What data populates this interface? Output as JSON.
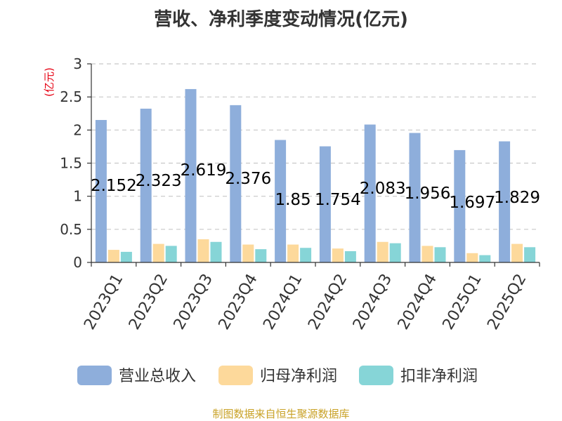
{
  "chart_data": {
    "type": "bar",
    "title": "营收、净利季度变动情况(亿元)",
    "unit_label": "(亿元)",
    "categories": [
      "2023Q1",
      "2023Q2",
      "2023Q3",
      "2023Q4",
      "2024Q1",
      "2024Q2",
      "2024Q3",
      "2024Q4",
      "2025Q1",
      "2025Q2"
    ],
    "series": [
      {
        "name": "营业总收入",
        "color": "#8eaedb",
        "values": [
          2.152,
          2.323,
          2.619,
          2.376,
          1.85,
          1.754,
          2.083,
          1.956,
          1.697,
          1.829
        ]
      },
      {
        "name": "归母净利润",
        "color": "#fdd99b",
        "values": [
          0.19,
          0.28,
          0.35,
          0.27,
          0.27,
          0.21,
          0.31,
          0.25,
          0.14,
          0.28
        ]
      },
      {
        "name": "扣非净利润",
        "color": "#86d5d7",
        "values": [
          0.16,
          0.25,
          0.31,
          0.2,
          0.22,
          0.17,
          0.29,
          0.23,
          0.11,
          0.23
        ]
      }
    ],
    "data_labels": [
      "2.152",
      "2.323",
      "2.619",
      "2.376",
      "1.85",
      "1.754",
      "2.083",
      "1.956",
      "1.697",
      "1.829"
    ],
    "yticks": [
      "0",
      "0.5",
      "1",
      "1.5",
      "2",
      "2.5",
      "3"
    ],
    "ylim": [
      0,
      3
    ],
    "grid": "horizontal dashed",
    "legend_position": "bottom"
  },
  "footer": {
    "source": "制图数据来自恒生聚源数据库"
  }
}
